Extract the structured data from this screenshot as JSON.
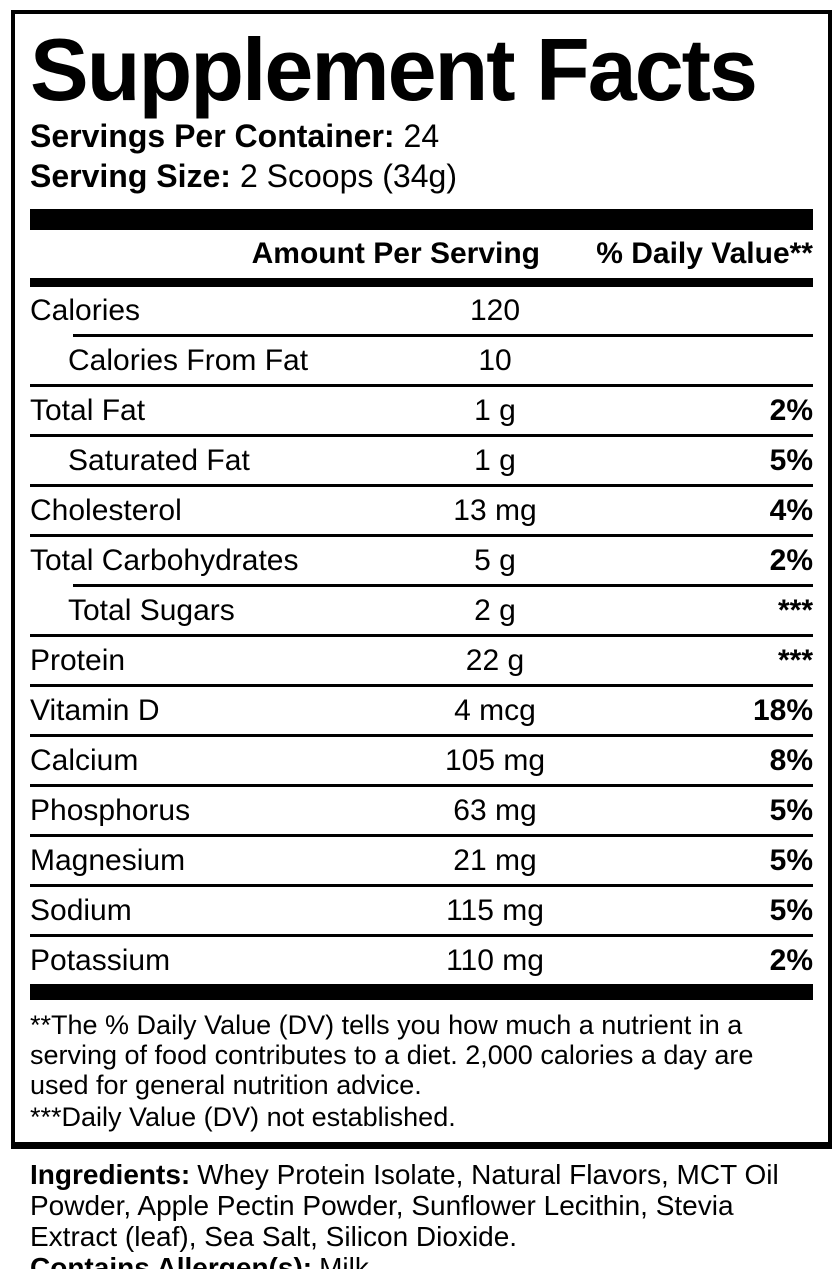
{
  "title": "Supplement Facts",
  "servings_per_container": {
    "label": "Servings Per Container:",
    "value": "24"
  },
  "serving_size": {
    "label": "Serving Size:",
    "value": "2 Scoops (34g)"
  },
  "table": {
    "headers": {
      "amount": "Amount Per Serving",
      "dv": "% Daily Value**"
    },
    "rows": [
      {
        "name": "Calories",
        "amount": "120",
        "dv": "",
        "indent": false,
        "sep": "none"
      },
      {
        "name": "Calories From Fat",
        "amount": "10",
        "dv": "",
        "indent": true,
        "sep": "indented"
      },
      {
        "name": "Total Fat",
        "amount": "1 g",
        "dv": "2%",
        "indent": false,
        "sep": "full"
      },
      {
        "name": "Saturated Fat",
        "amount": "1 g",
        "dv": "5%",
        "indent": true,
        "sep": "full"
      },
      {
        "name": "Cholesterol",
        "amount": "13 mg",
        "dv": "4%",
        "indent": false,
        "sep": "full"
      },
      {
        "name": "Total Carbohydrates",
        "amount": "5 g",
        "dv": "2%",
        "indent": false,
        "sep": "full"
      },
      {
        "name": "Total Sugars",
        "amount": "2 g",
        "dv": "***",
        "indent": true,
        "sep": "indented"
      },
      {
        "name": "Protein",
        "amount": "22 g",
        "dv": "***",
        "indent": false,
        "sep": "full"
      },
      {
        "name": "Vitamin D",
        "amount": "4 mcg",
        "dv": "18%",
        "indent": false,
        "sep": "full"
      },
      {
        "name": "Calcium",
        "amount": "105 mg",
        "dv": "8%",
        "indent": false,
        "sep": "full"
      },
      {
        "name": "Phosphorus",
        "amount": "63 mg",
        "dv": "5%",
        "indent": false,
        "sep": "full"
      },
      {
        "name": "Magnesium",
        "amount": "21 mg",
        "dv": "5%",
        "indent": false,
        "sep": "full"
      },
      {
        "name": "Sodium",
        "amount": "115 mg",
        "dv": "5%",
        "indent": false,
        "sep": "full"
      },
      {
        "name": "Potassium",
        "amount": "110 mg",
        "dv": "2%",
        "indent": false,
        "sep": "full"
      }
    ]
  },
  "footnotes": [
    "**The % Daily Value (DV) tells you how much a nutrient in a serving of food contributes to a diet. 2,000 calories a day are used for general nutrition advice.",
    "***Daily Value (DV) not established."
  ],
  "ingredients": {
    "label": "Ingredients:",
    "value": "Whey Protein Isolate, Natural Flavors, MCT Oil Powder, Apple Pectin Powder, Sunflower Lecithin, Stevia Extract (leaf), Sea Salt, Silicon Dioxide."
  },
  "allergens": {
    "label": "Contains Allergen(s):",
    "value": "Milk"
  },
  "colors": {
    "text": "#000000",
    "background": "#ffffff"
  }
}
